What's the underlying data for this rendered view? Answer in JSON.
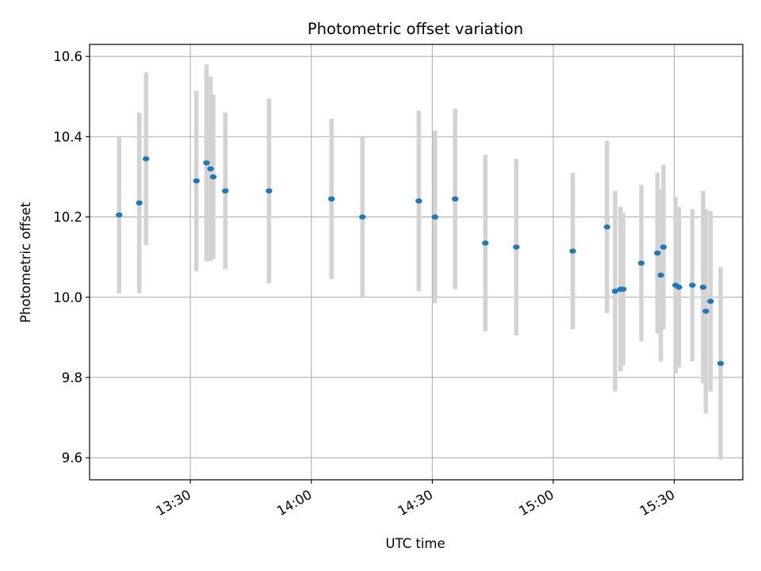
{
  "chart_data": {
    "type": "scatter",
    "title": "Photometric offset variation",
    "xlabel": "UTC time",
    "ylabel": "Photometric offset",
    "xlim": [
      "13:05",
      "15:47"
    ],
    "ylim": [
      9.545,
      10.63
    ],
    "xticks": [
      "13:30",
      "14:00",
      "14:30",
      "15:00",
      "15:30"
    ],
    "yticks": [
      9.6,
      9.8,
      10.0,
      10.2,
      10.4,
      10.6
    ],
    "grid": true,
    "colors": {
      "points": "#1f77b4",
      "errorbars": "#d3d3d3",
      "grid": "#b0b0b0"
    },
    "points": [
      {
        "x": "13:12:20",
        "y": 10.205,
        "yerr": 0.195
      },
      {
        "x": "13:17:20",
        "y": 10.235,
        "yerr": 0.225
      },
      {
        "x": "13:19:00",
        "y": 10.345,
        "yerr": 0.215
      },
      {
        "x": "13:31:30",
        "y": 10.29,
        "yerr": 0.225
      },
      {
        "x": "13:34:00",
        "y": 10.335,
        "yerr": 0.245
      },
      {
        "x": "13:35:00",
        "y": 10.32,
        "yerr": 0.23
      },
      {
        "x": "13:35:40",
        "y": 10.3,
        "yerr": 0.205
      },
      {
        "x": "13:38:40",
        "y": 10.265,
        "yerr": 0.195
      },
      {
        "x": "13:49:30",
        "y": 10.265,
        "yerr": 0.23
      },
      {
        "x": "14:05:00",
        "y": 10.245,
        "yerr": 0.2
      },
      {
        "x": "14:12:40",
        "y": 10.2,
        "yerr": 0.2
      },
      {
        "x": "14:26:40",
        "y": 10.24,
        "yerr": 0.225
      },
      {
        "x": "14:30:40",
        "y": 10.2,
        "yerr": 0.215
      },
      {
        "x": "14:35:40",
        "y": 10.245,
        "yerr": 0.225
      },
      {
        "x": "14:43:10",
        "y": 10.135,
        "yerr": 0.22
      },
      {
        "x": "14:50:50",
        "y": 10.125,
        "yerr": 0.22
      },
      {
        "x": "15:04:50",
        "y": 10.115,
        "yerr": 0.195
      },
      {
        "x": "15:13:20",
        "y": 10.175,
        "yerr": 0.215
      },
      {
        "x": "15:15:20",
        "y": 10.015,
        "yerr": 0.25
      },
      {
        "x": "15:16:40",
        "y": 10.02,
        "yerr": 0.205
      },
      {
        "x": "15:17:20",
        "y": 10.02,
        "yerr": 0.19
      },
      {
        "x": "15:21:50",
        "y": 10.085,
        "yerr": 0.195
      },
      {
        "x": "15:25:50",
        "y": 10.11,
        "yerr": 0.2
      },
      {
        "x": "15:26:40",
        "y": 10.055,
        "yerr": 0.215
      },
      {
        "x": "15:27:20",
        "y": 10.125,
        "yerr": 0.205
      },
      {
        "x": "15:30:20",
        "y": 10.03,
        "yerr": 0.22
      },
      {
        "x": "15:31:10",
        "y": 10.025,
        "yerr": 0.2
      },
      {
        "x": "15:34:30",
        "y": 10.03,
        "yerr": 0.19
      },
      {
        "x": "15:37:10",
        "y": 10.025,
        "yerr": 0.24
      },
      {
        "x": "15:37:50",
        "y": 9.965,
        "yerr": 0.255
      },
      {
        "x": "15:39:00",
        "y": 9.99,
        "yerr": 0.225
      },
      {
        "x": "15:41:30",
        "y": 9.835,
        "yerr": 0.24
      }
    ]
  }
}
